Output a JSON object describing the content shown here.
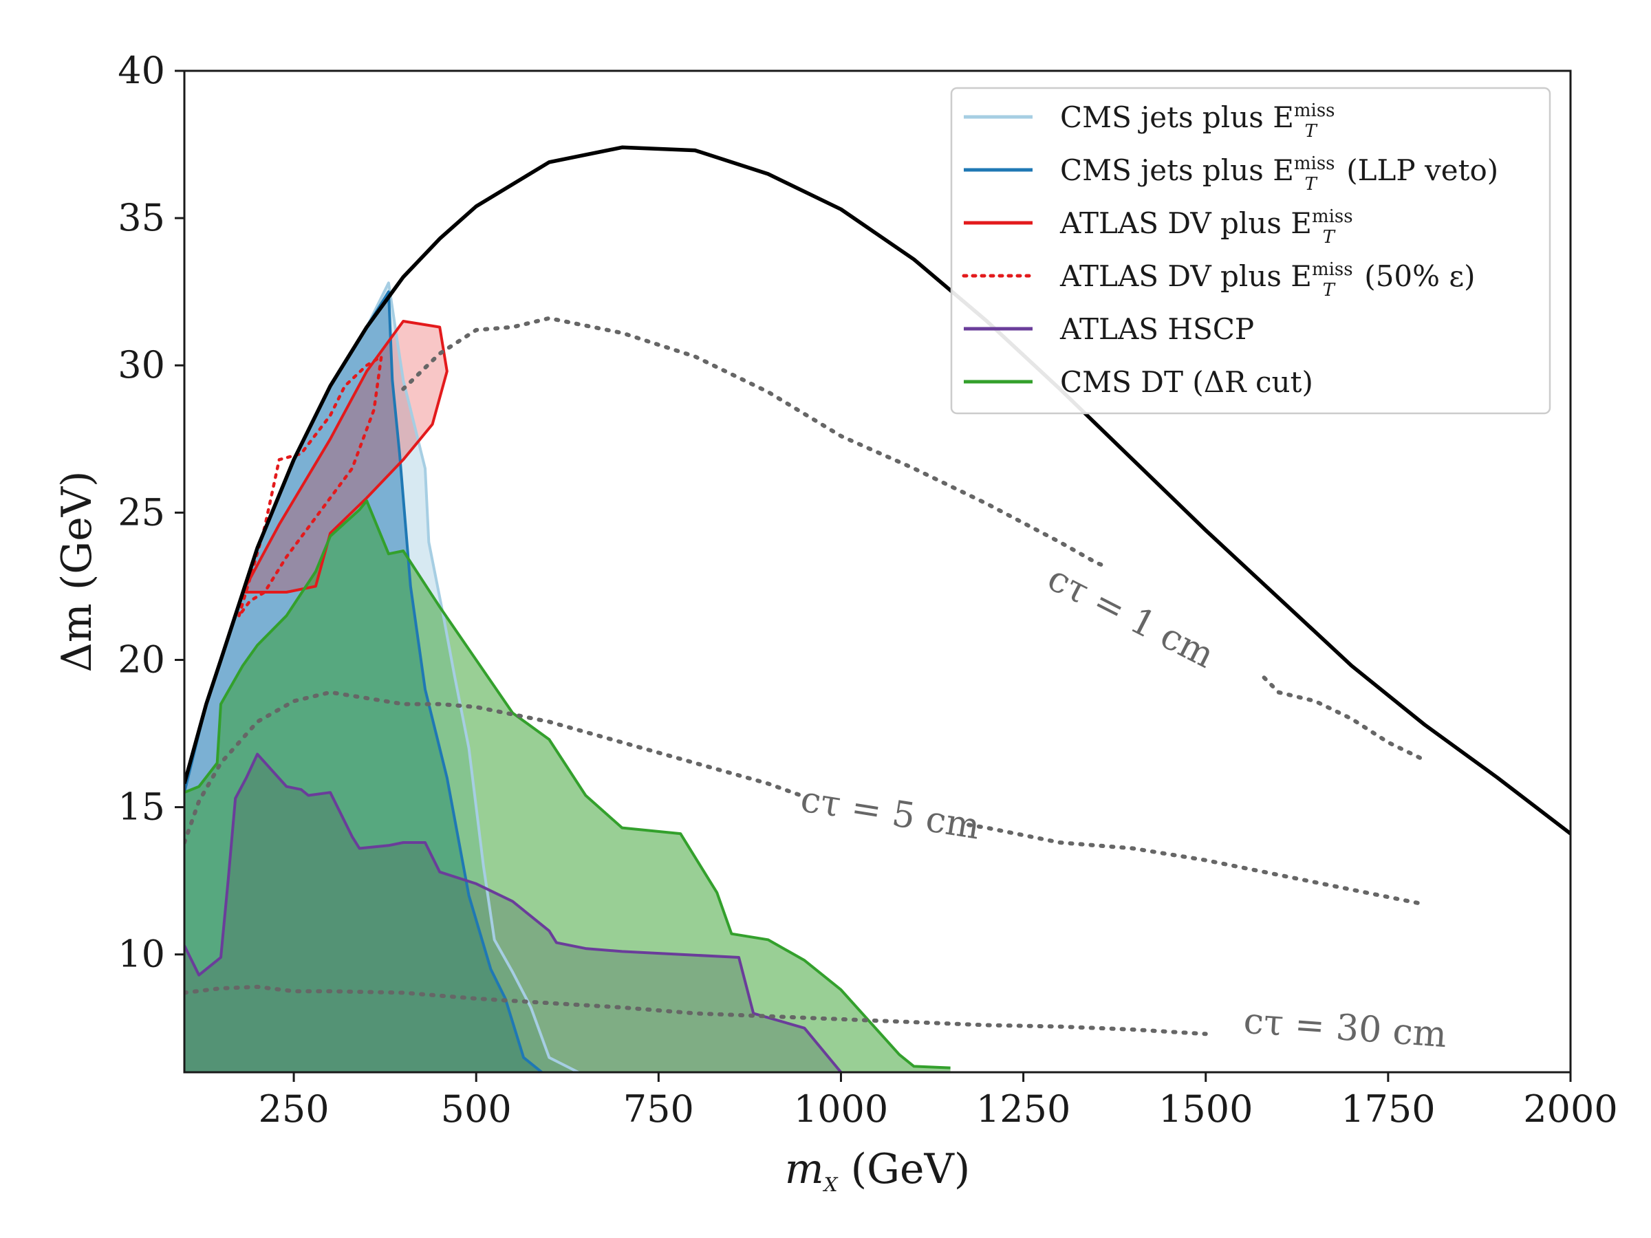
{
  "chart_data": {
    "type": "area",
    "title": "",
    "xlabel": "m_X (GeV)",
    "ylabel": "Δm (GeV)",
    "xlim": [
      100,
      2000
    ],
    "ylim": [
      6,
      40
    ],
    "xticks": [
      250,
      500,
      750,
      1000,
      1250,
      1500,
      1750,
      2000
    ],
    "yticks": [
      10,
      15,
      20,
      25,
      30,
      35,
      40
    ],
    "grid": false,
    "legend_position": "top-right",
    "boundary": {
      "name": "kinematic boundary",
      "color": "#000000",
      "points": [
        [
          100,
          15.8
        ],
        [
          130,
          18.5
        ],
        [
          150,
          20
        ],
        [
          200,
          23.8
        ],
        [
          250,
          26.8
        ],
        [
          300,
          29.3
        ],
        [
          350,
          31.3
        ],
        [
          400,
          33
        ],
        [
          450,
          34.3
        ],
        [
          500,
          35.4
        ],
        [
          600,
          36.9
        ],
        [
          700,
          37.4
        ],
        [
          800,
          37.3
        ],
        [
          900,
          36.5
        ],
        [
          1000,
          35.3
        ],
        [
          1100,
          33.6
        ],
        [
          1200,
          31.5
        ],
        [
          1300,
          29.2
        ],
        [
          1400,
          26.8
        ],
        [
          1500,
          24.4
        ],
        [
          1600,
          22.1
        ],
        [
          1700,
          19.8
        ],
        [
          1800,
          17.8
        ],
        [
          1900,
          16
        ],
        [
          2000,
          14.1
        ]
      ]
    },
    "ctau_contours": [
      {
        "label": "cτ = 1 cm",
        "label_x": 1390,
        "label_y": 21.1,
        "label_angle": 27,
        "points": [
          [
            400,
            29.2
          ],
          [
            450,
            30.4
          ],
          [
            500,
            31.2
          ],
          [
            550,
            31.3
          ],
          [
            600,
            31.6
          ],
          [
            700,
            31.1
          ],
          [
            800,
            30.3
          ],
          [
            900,
            29.1
          ],
          [
            1000,
            27.6
          ],
          [
            1100,
            26.5
          ],
          [
            1200,
            25.3
          ],
          [
            1300,
            24
          ],
          [
            1350,
            23.3
          ],
          [
            1360,
            23.2
          ],
          [
            1580,
            19.4
          ],
          [
            1600,
            18.9
          ],
          [
            1650,
            18.6
          ],
          [
            1700,
            18
          ],
          [
            1750,
            17.2
          ],
          [
            1800,
            16.6
          ]
        ]
      },
      {
        "label": "cτ = 5 cm",
        "label_x": 1065,
        "label_y": 14.4,
        "label_angle": 9,
        "points": [
          [
            100,
            13.8
          ],
          [
            120,
            15.2
          ],
          [
            150,
            16.5
          ],
          [
            200,
            17.9
          ],
          [
            250,
            18.6
          ],
          [
            300,
            18.9
          ],
          [
            350,
            18.7
          ],
          [
            400,
            18.5
          ],
          [
            450,
            18.5
          ],
          [
            500,
            18.4
          ],
          [
            600,
            17.9
          ],
          [
            700,
            17.2
          ],
          [
            800,
            16.5
          ],
          [
            900,
            15.8
          ],
          [
            945,
            15.4
          ],
          [
            1175,
            14.4
          ],
          [
            1200,
            14.3
          ],
          [
            1300,
            13.8
          ],
          [
            1400,
            13.6
          ],
          [
            1500,
            13.2
          ],
          [
            1600,
            12.7
          ],
          [
            1700,
            12.2
          ],
          [
            1800,
            11.7
          ]
        ]
      },
      {
        "label": "cτ = 30 cm",
        "label_x": 1690,
        "label_y": 7.1,
        "label_angle": 4,
        "points": [
          [
            100,
            8.7
          ],
          [
            150,
            8.85
          ],
          [
            200,
            8.9
          ],
          [
            250,
            8.75
          ],
          [
            300,
            8.75
          ],
          [
            400,
            8.7
          ],
          [
            500,
            8.5
          ],
          [
            600,
            8.35
          ],
          [
            700,
            8.2
          ],
          [
            800,
            8
          ],
          [
            900,
            7.9
          ],
          [
            1000,
            7.8
          ],
          [
            1100,
            7.7
          ],
          [
            1200,
            7.6
          ],
          [
            1300,
            7.55
          ],
          [
            1400,
            7.45
          ],
          [
            1500,
            7.3
          ]
        ]
      }
    ],
    "series": [
      {
        "name": "CMS jets plus E_T^miss",
        "color": "#a6cee3",
        "fill_alpha": 0.45,
        "line_style": "solid",
        "points": [
          [
            100,
            15.5
          ],
          [
            130,
            18.5
          ],
          [
            150,
            20
          ],
          [
            200,
            23.8
          ],
          [
            250,
            26.8
          ],
          [
            300,
            29.3
          ],
          [
            350,
            31.3
          ],
          [
            380,
            32.8
          ],
          [
            395,
            30.3
          ],
          [
            400,
            29.5
          ],
          [
            430,
            26.5
          ],
          [
            435,
            24
          ],
          [
            455,
            21.5
          ],
          [
            470,
            19.5
          ],
          [
            490,
            17
          ],
          [
            510,
            13
          ],
          [
            525,
            10.5
          ],
          [
            550,
            9.4
          ],
          [
            575,
            8.2
          ],
          [
            600,
            6.5
          ],
          [
            640,
            6
          ]
        ]
      },
      {
        "name": "CMS jets plus E_T^miss (LLP veto)",
        "color": "#1f78b4",
        "fill_alpha": 0.5,
        "line_style": "solid",
        "points": [
          [
            100,
            15.5
          ],
          [
            130,
            18.5
          ],
          [
            150,
            20
          ],
          [
            200,
            23.8
          ],
          [
            250,
            26.8
          ],
          [
            300,
            29.3
          ],
          [
            350,
            31.3
          ],
          [
            380,
            32.5
          ],
          [
            385,
            29.5
          ],
          [
            395,
            27
          ],
          [
            410,
            22.5
          ],
          [
            430,
            19
          ],
          [
            460,
            16
          ],
          [
            490,
            12
          ],
          [
            520,
            9.5
          ],
          [
            540,
            8.5
          ],
          [
            565,
            6.5
          ],
          [
            590,
            6
          ]
        ]
      },
      {
        "name": "ATLAS DV plus E_T^miss",
        "color": "#e31a1c",
        "fill_alpha": 0.25,
        "line_style": "solid",
        "points": [
          [
            180,
            22.3
          ],
          [
            230,
            24.6
          ],
          [
            300,
            27.5
          ],
          [
            350,
            29.8
          ],
          [
            400,
            31.5
          ],
          [
            450,
            31.3
          ],
          [
            460,
            29.8
          ],
          [
            440,
            28
          ],
          [
            400,
            26.8
          ],
          [
            350,
            25.5
          ],
          [
            300,
            24.3
          ],
          [
            280,
            22.5
          ],
          [
            240,
            22.3
          ],
          [
            190,
            22.3
          ],
          [
            180,
            22.3
          ]
        ]
      },
      {
        "name": "ATLAS DV plus E_T^miss (50% ε)",
        "color": "#e31a1c",
        "fill_alpha": 0.0,
        "line_style": "dotted",
        "points": [
          [
            175,
            21.5
          ],
          [
            195,
            23.2
          ],
          [
            210,
            24.5
          ],
          [
            230,
            26.8
          ],
          [
            260,
            27
          ],
          [
            300,
            28.3
          ],
          [
            320,
            29.3
          ],
          [
            350,
            30
          ],
          [
            370,
            30.3
          ],
          [
            360,
            28.5
          ],
          [
            345,
            27.5
          ],
          [
            330,
            26.5
          ],
          [
            300,
            25.5
          ],
          [
            270,
            24.5
          ],
          [
            240,
            23.5
          ],
          [
            210,
            22.3
          ],
          [
            190,
            22
          ],
          [
            175,
            21.5
          ]
        ]
      },
      {
        "name": "ATLAS HSCP",
        "color": "#6a3d9a",
        "fill_alpha": 0.35,
        "line_style": "solid",
        "points": [
          [
            100,
            10.3
          ],
          [
            120,
            9.3
          ],
          [
            150,
            9.9
          ],
          [
            160,
            12.5
          ],
          [
            170,
            15.3
          ],
          [
            185,
            16
          ],
          [
            200,
            16.8
          ],
          [
            240,
            15.7
          ],
          [
            260,
            15.6
          ],
          [
            270,
            15.4
          ],
          [
            300,
            15.5
          ],
          [
            330,
            14
          ],
          [
            340,
            13.6
          ],
          [
            380,
            13.7
          ],
          [
            400,
            13.8
          ],
          [
            430,
            13.8
          ],
          [
            450,
            12.8
          ],
          [
            500,
            12.4
          ],
          [
            550,
            11.8
          ],
          [
            600,
            10.8
          ],
          [
            610,
            10.4
          ],
          [
            650,
            10.2
          ],
          [
            700,
            10.1
          ],
          [
            860,
            9.9
          ],
          [
            880,
            8
          ],
          [
            950,
            7.5
          ],
          [
            1000,
            6
          ]
        ]
      },
      {
        "name": "CMS DT (ΔR cut)",
        "color": "#33a02c",
        "fill_alpha": 0.5,
        "line_style": "solid",
        "points": [
          [
            100,
            15.5
          ],
          [
            120,
            15.7
          ],
          [
            145,
            16.5
          ],
          [
            150,
            18.5
          ],
          [
            180,
            19.8
          ],
          [
            200,
            20.5
          ],
          [
            240,
            21.5
          ],
          [
            280,
            23
          ],
          [
            300,
            24.2
          ],
          [
            340,
            25.1
          ],
          [
            350,
            25.4
          ],
          [
            380,
            23.6
          ],
          [
            400,
            23.7
          ],
          [
            450,
            21.8
          ],
          [
            500,
            20
          ],
          [
            550,
            18.2
          ],
          [
            600,
            17.3
          ],
          [
            650,
            15.4
          ],
          [
            700,
            14.3
          ],
          [
            780,
            14.1
          ],
          [
            830,
            12.1
          ],
          [
            850,
            10.7
          ],
          [
            900,
            10.5
          ],
          [
            950,
            9.8
          ],
          [
            1000,
            8.8
          ],
          [
            1080,
            6.6
          ],
          [
            1100,
            6.2
          ],
          [
            1150,
            6.15
          ]
        ]
      }
    ]
  },
  "legend": {
    "items": [
      {
        "main": "CMS jets plus E",
        "sub": "T",
        "sup": "miss",
        "suffix": "",
        "color": "#a6cee3",
        "dash": "solid"
      },
      {
        "main": "CMS jets plus E",
        "sub": "T",
        "sup": "miss",
        "suffix": " (LLP veto)",
        "color": "#1f78b4",
        "dash": "solid"
      },
      {
        "main": "ATLAS DV plus E",
        "sub": "T",
        "sup": "miss",
        "suffix": "",
        "color": "#e31a1c",
        "dash": "solid"
      },
      {
        "main": "ATLAS DV plus E",
        "sub": "T",
        "sup": "miss",
        "suffix": " (50% ε)",
        "color": "#e31a1c",
        "dash": "dotted"
      },
      {
        "main": "ATLAS HSCP",
        "sub": "",
        "sup": "",
        "suffix": "",
        "color": "#6a3d9a",
        "dash": "solid"
      },
      {
        "main": "CMS DT (ΔR cut)",
        "sub": "",
        "sup": "",
        "suffix": "",
        "color": "#33a02c",
        "dash": "solid"
      }
    ]
  },
  "axes": {
    "x_label_main": "m",
    "x_label_sub": "X",
    "x_label_unit": " (GeV)",
    "y_label": "Δm (GeV)"
  }
}
